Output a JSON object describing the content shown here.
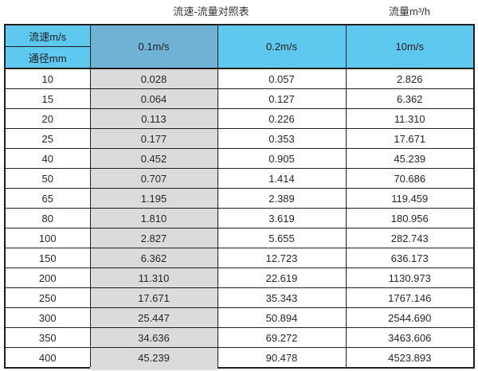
{
  "titles": {
    "left": "流速-流量对照表",
    "right": "流量m³/h"
  },
  "table": {
    "header": {
      "velocity_label": "流速m/s",
      "diameter_label": "通径mm",
      "v01": "0.1m/s",
      "v02": "0.2m/s",
      "v10": "10m/s"
    },
    "rows": [
      {
        "dn": "10",
        "v01": "0.028",
        "v02": "0.057",
        "v10": "2.826"
      },
      {
        "dn": "15",
        "v01": "0.064",
        "v02": "0.127",
        "v10": "6.362"
      },
      {
        "dn": "20",
        "v01": "0.113",
        "v02": "0.226",
        "v10": "11.310"
      },
      {
        "dn": "25",
        "v01": "0.177",
        "v02": "0.353",
        "v10": "17.671"
      },
      {
        "dn": "40",
        "v01": "0.452",
        "v02": "0.905",
        "v10": "45.239"
      },
      {
        "dn": "50",
        "v01": "0.707",
        "v02": "1.414",
        "v10": "70.686"
      },
      {
        "dn": "65",
        "v01": "1.195",
        "v02": "2.389",
        "v10": "119.459"
      },
      {
        "dn": "80",
        "v01": "1.810",
        "v02": "3.619",
        "v10": "180.956"
      },
      {
        "dn": "100",
        "v01": "2.827",
        "v02": "5.655",
        "v10": "282.743"
      },
      {
        "dn": "150",
        "v01": "6.362",
        "v02": "12.723",
        "v10": "636.173"
      },
      {
        "dn": "200",
        "v01": "11.310",
        "v02": "22.619",
        "v10": "1130.973"
      },
      {
        "dn": "250",
        "v01": "17.671",
        "v02": "35.343",
        "v10": "1767.146"
      },
      {
        "dn": "300",
        "v01": "25.447",
        "v02": "50.894",
        "v10": "2544.690"
      },
      {
        "dn": "350",
        "v01": "34.636",
        "v02": "69.272",
        "v10": "3463.606"
      },
      {
        "dn": "400",
        "v01": "45.239",
        "v02": "90.478",
        "v10": "4523.893"
      }
    ]
  },
  "colors": {
    "header_blue": "#5fc8ee",
    "header_muted_blue": "#6fb2d4",
    "gray_column": "#dbdbdb",
    "border": "#1f1f1f"
  },
  "chart_data": {
    "type": "table",
    "title": "流速-流量对照表",
    "flow_unit_label": "流量m³/h",
    "columns": [
      "通径mm",
      "0.1m/s",
      "0.2m/s",
      "10m/s"
    ],
    "rows": [
      [
        10,
        0.028,
        0.057,
        2.826
      ],
      [
        15,
        0.064,
        0.127,
        6.362
      ],
      [
        20,
        0.113,
        0.226,
        11.31
      ],
      [
        25,
        0.177,
        0.353,
        17.671
      ],
      [
        40,
        0.452,
        0.905,
        45.239
      ],
      [
        50,
        0.707,
        1.414,
        70.686
      ],
      [
        65,
        1.195,
        2.389,
        119.459
      ],
      [
        80,
        1.81,
        3.619,
        180.956
      ],
      [
        100,
        2.827,
        5.655,
        282.743
      ],
      [
        150,
        6.362,
        12.723,
        636.173
      ],
      [
        200,
        11.31,
        22.619,
        1130.973
      ],
      [
        250,
        17.671,
        35.343,
        1767.146
      ],
      [
        300,
        25.447,
        50.894,
        2544.69
      ],
      [
        350,
        34.636,
        69.272,
        3463.606
      ],
      [
        400,
        45.239,
        90.478,
        4523.893
      ]
    ]
  }
}
